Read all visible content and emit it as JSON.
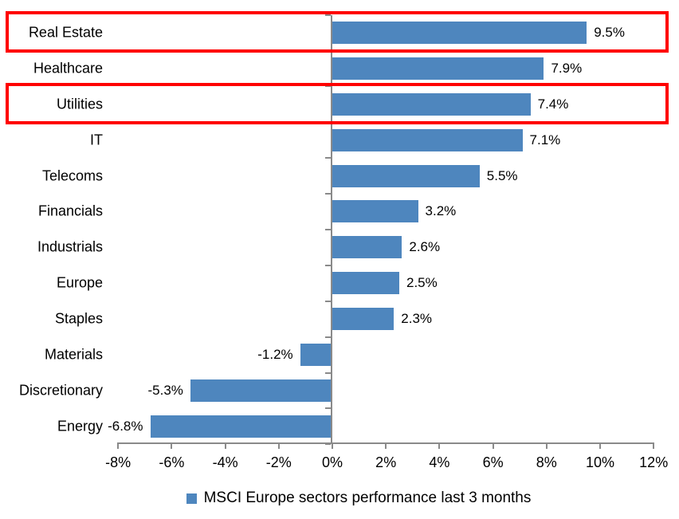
{
  "chart_data": {
    "type": "bar",
    "orientation": "horizontal",
    "title": "",
    "xlabel": "",
    "ylabel": "",
    "categories": [
      "Real Estate",
      "Healthcare",
      "Utilities",
      "IT",
      "Telecoms",
      "Financials",
      "Industrials",
      "Europe",
      "Staples",
      "Materials",
      "Discretionary",
      "Energy"
    ],
    "values": [
      9.5,
      7.9,
      7.4,
      7.1,
      5.5,
      3.2,
      2.6,
      2.5,
      2.3,
      -1.2,
      -5.3,
      -6.8
    ],
    "data_labels": [
      "9.5%",
      "7.9%",
      "7.4%",
      "7.1%",
      "5.5%",
      "3.2%",
      "2.6%",
      "2.5%",
      "2.3%",
      "-1.2%",
      "-5.3%",
      "-6.8%"
    ],
    "xlim": [
      -8,
      12
    ],
    "x_tick_values": [
      -8,
      -6,
      -4,
      -2,
      0,
      2,
      4,
      6,
      8,
      10,
      12
    ],
    "x_tick_labels": [
      "-8%",
      "-6%",
      "-4%",
      "-2%",
      "0%",
      "2%",
      "4%",
      "6%",
      "8%",
      "10%",
      "12%"
    ],
    "grid": false,
    "legend": "MSCI Europe sectors performance last 3 months",
    "legend_position": "bottom",
    "bar_color": "#4E86BE",
    "axis_color": "#8A8A8A",
    "text_color": "#000000",
    "highlight_color": "#FF0000",
    "highlighted_categories": [
      "Real Estate",
      "Utilities"
    ]
  }
}
